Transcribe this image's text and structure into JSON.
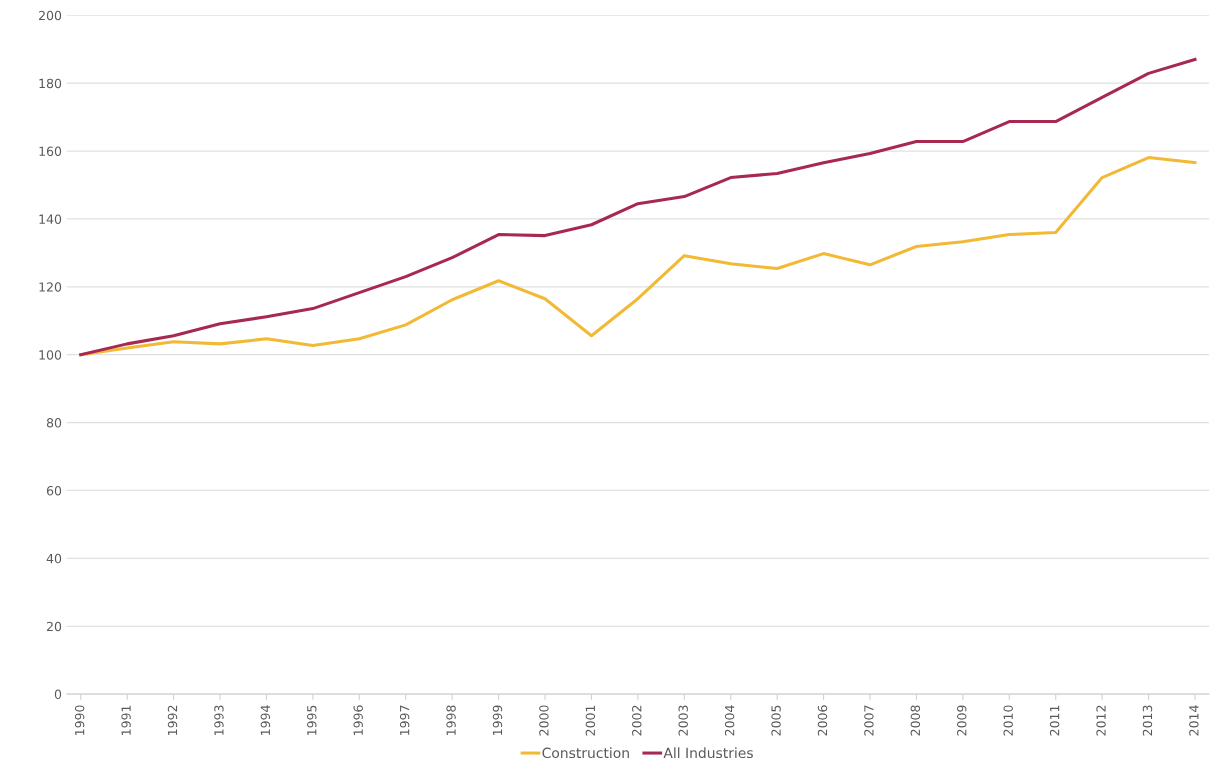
{
  "chart_data": {
    "type": "line",
    "categories": [
      "1990",
      "1991",
      "1992",
      "1993",
      "1994",
      "1995",
      "1996",
      "1997",
      "1998",
      "1999",
      "2000",
      "2001",
      "2002",
      "2003",
      "2004",
      "2005",
      "2006",
      "2007",
      "2008",
      "2009",
      "2010",
      "2011",
      "2012",
      "2013",
      "2014"
    ],
    "series": [
      {
        "name": "Construction",
        "color": "#f2b935",
        "values": [
          100,
          102,
          103.8,
          103.2,
          104.7,
          102.7,
          104.7,
          108.8,
          116.2,
          121.8,
          116.5,
          105.6,
          116.5,
          129.2,
          126.8,
          125.4,
          129.8,
          126.5,
          131.9,
          133.3,
          135.4,
          136,
          152.2,
          158.1,
          156.6
        ]
      },
      {
        "name": "All Industries",
        "color": "#a8294f",
        "values": [
          100,
          103.2,
          105.6,
          109.1,
          111.2,
          113.6,
          118.3,
          123,
          128.6,
          135.4,
          135.1,
          138.3,
          144.5,
          146.6,
          152.2,
          153.4,
          156.6,
          159.3,
          162.8,
          162.8,
          168.7,
          168.7,
          175.8,
          182.9,
          187
        ]
      }
    ],
    "ylim": [
      0,
      200
    ],
    "yticks": [
      0,
      20,
      40,
      60,
      80,
      100,
      120,
      140,
      160,
      180,
      200
    ],
    "grid": "y",
    "legend": "bottom",
    "marker": "none",
    "line_style": "solid"
  }
}
